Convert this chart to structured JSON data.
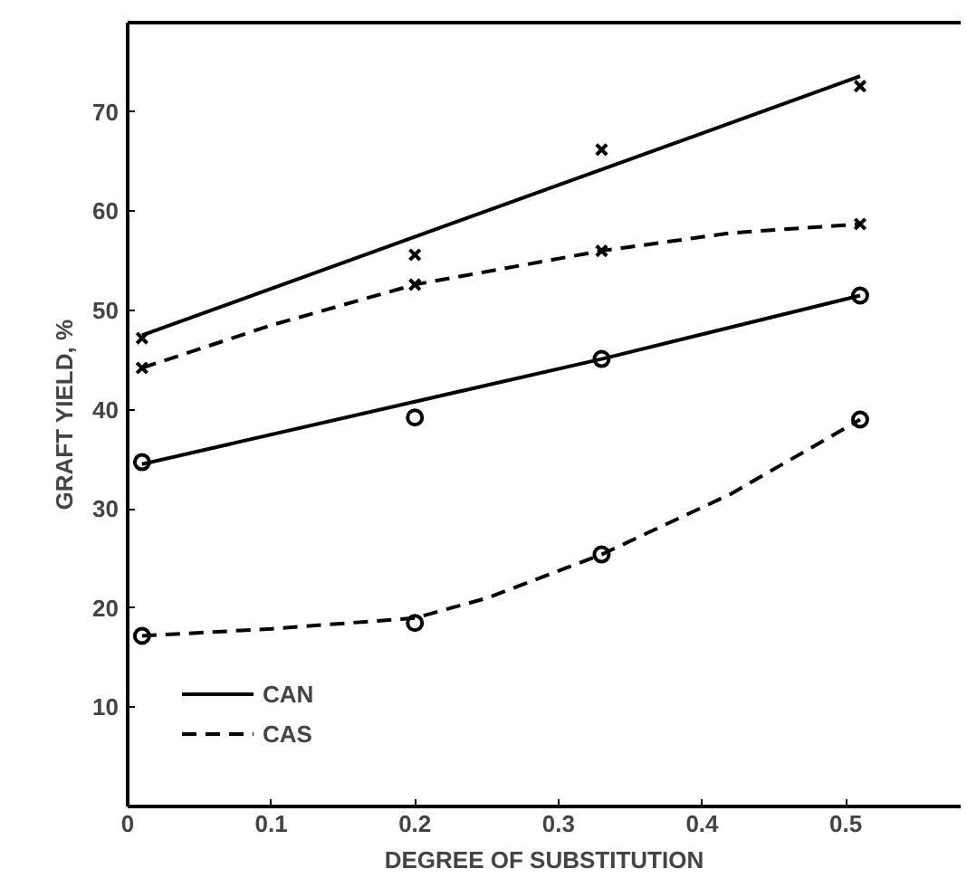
{
  "chart_data": {
    "type": "line",
    "xlabel": "DEGREE OF SUBSTITUTION",
    "ylabel": "GRAFT YIELD, %",
    "xlim": [
      0,
      0.58
    ],
    "ylim": [
      0,
      79
    ],
    "xticks": [
      0,
      {
        "value": 0.1,
        "label": "0.1"
      },
      0.2,
      0.3,
      0.4,
      0.5
    ],
    "yticks": [
      10,
      20,
      30,
      40,
      50,
      60,
      70
    ],
    "grid": false,
    "legend": "bottom left",
    "series": [
      {
        "name": "CAN",
        "color": "#000000",
        "line_style": "solid",
        "marker": "none",
        "x": [
          0.01,
          0.51
        ],
        "values": [
          47.5,
          73.6
        ]
      },
      {
        "name": "CAS",
        "color": "#000000",
        "line_style": "dashed",
        "marker": "none",
        "x": [
          0.01,
          0.1,
          0.2,
          0.33,
          0.42,
          0.51
        ],
        "values": [
          44.2,
          48.5,
          52.6,
          56.0,
          57.8,
          58.7
        ]
      },
      {
        "color": "#000000",
        "line_style": "solid",
        "marker": "none",
        "x": [
          0.01,
          0.2,
          0.33,
          0.51
        ],
        "values": [
          34.5,
          40.8,
          45.1,
          51.5
        ]
      },
      {
        "color": "#000000",
        "line_style": "dashed",
        "marker": "none",
        "x": [
          0.01,
          0.1,
          0.2,
          0.25,
          0.33,
          0.42,
          0.51
        ],
        "values": [
          17.2,
          17.9,
          19.0,
          21.0,
          25.4,
          31.5,
          39.0
        ]
      },
      {
        "type": "scatter",
        "color": "#000000",
        "marker": "cross",
        "x": [
          0.01,
          0.2,
          0.33,
          0.51
        ],
        "values": [
          47.2,
          55.6,
          66.2,
          72.6
        ]
      },
      {
        "type": "scatter",
        "color": "#000000",
        "marker": "cross",
        "x": [
          0.01,
          0.2,
          0.33,
          0.51
        ],
        "values": [
          44.2,
          52.6,
          56.0,
          58.7
        ]
      },
      {
        "type": "scatter",
        "color": "#000000",
        "marker": "circle",
        "x": [
          0.01,
          0.2,
          0.33,
          0.51
        ],
        "values": [
          34.7,
          39.2,
          45.1,
          51.5
        ]
      },
      {
        "type": "scatter",
        "color": "#000000",
        "marker": "circle",
        "x": [
          0.01,
          0.2,
          0.33,
          0.51
        ],
        "values": [
          17.2,
          18.5,
          25.4,
          39.0
        ]
      }
    ]
  }
}
